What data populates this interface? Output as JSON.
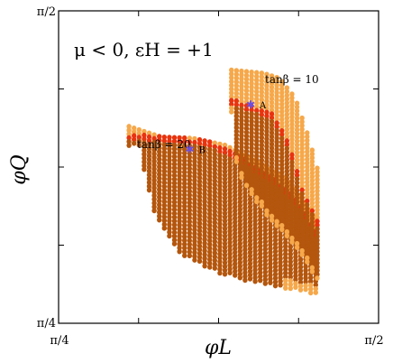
{
  "chart_data": {
    "type": "scatter",
    "xlabel": "φL",
    "ylabel": "φQ",
    "title": "μ < 0, εH = +1",
    "xlim_label": [
      "π/4",
      "π/2"
    ],
    "ylim_label": [
      "π/4",
      "π/2"
    ],
    "xlim": [
      0.7854,
      1.5708
    ],
    "ylim": [
      0.7854,
      1.5708
    ],
    "grid": false,
    "colors": {
      "light": "#f6a84a",
      "mid": "#e8340e",
      "dark": "#b4560d",
      "marker": "#6b4fe0"
    },
    "regions": [
      {
        "name": "tanβ = 20",
        "label": "tanβ = 20",
        "x_range": [
          0.9582,
          1.4216
        ],
        "top_light": [
          [
            0.9582,
            1.2802
          ],
          [
            1.0367,
            1.2535
          ],
          [
            1.1152,
            1.2503
          ],
          [
            1.1938,
            1.233
          ],
          [
            1.2723,
            1.1937
          ],
          [
            1.3508,
            1.145
          ],
          [
            1.3822,
            1.1041
          ],
          [
            1.4216,
            1.046
          ]
        ],
        "top_red": [
          [
            0.9817,
            1.2598
          ],
          [
            1.076,
            1.2535
          ],
          [
            1.1545,
            1.244
          ],
          [
            1.233,
            1.2055
          ],
          [
            1.3115,
            1.1544
          ],
          [
            1.3822,
            1.0855
          ],
          [
            1.4216,
            1.006
          ]
        ],
        "bottom": [
          [
            0.9817,
            1.23
          ],
          [
            1.021,
            1.0602
          ],
          [
            1.076,
            0.966
          ],
          [
            1.1545,
            0.9189
          ],
          [
            1.233,
            0.8954
          ],
          [
            1.3115,
            0.8796
          ],
          [
            1.3822,
            0.8639
          ],
          [
            1.4216,
            0.8561
          ]
        ]
      },
      {
        "name": "tanβ = 10",
        "label": "tanβ = 10",
        "x_range": [
          1.2096,
          1.4216
        ],
        "top_light": [
          [
            1.2096,
            1.4218
          ],
          [
            1.288,
            1.4138
          ],
          [
            1.3272,
            1.4012
          ],
          [
            1.3665,
            1.351
          ],
          [
            1.3979,
            1.2567
          ],
          [
            1.4216,
            1.1703
          ]
        ],
        "top_red": [
          [
            1.2096,
            1.351
          ],
          [
            1.2566,
            1.3352
          ],
          [
            1.3115,
            1.3117
          ],
          [
            1.3508,
            1.241
          ],
          [
            1.3822,
            1.131
          ],
          [
            1.4216,
            1.0446
          ]
        ],
        "bottom": [
          [
            1.2096,
            1.31
          ],
          [
            1.2096,
            1.226
          ],
          [
            1.2408,
            1.131
          ],
          [
            1.288,
            1.068
          ],
          [
            1.335,
            1.013
          ],
          [
            1.3822,
            0.958
          ],
          [
            1.4216,
            0.8875
          ]
        ]
      }
    ],
    "points": [
      {
        "label": "A",
        "x": 1.2566,
        "y": 1.3352
      },
      {
        "label": "B",
        "x": 1.1073,
        "y": 1.222
      }
    ]
  }
}
